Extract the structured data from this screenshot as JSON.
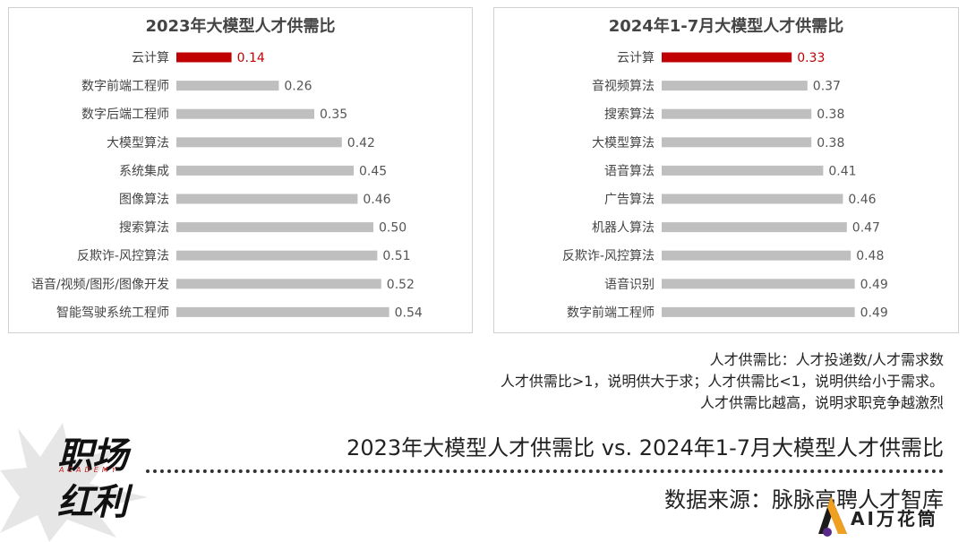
{
  "chart_data": [
    {
      "type": "bar",
      "orientation": "horizontal",
      "title": "2023年大模型人才供需比",
      "categories": [
        "云计算",
        "数字前端工程师",
        "数字后端工程师",
        "大模型算法",
        "系统集成",
        "图像算法",
        "搜索算法",
        "反欺诈-风控算法",
        "语音/视频/图形/图像开发",
        "智能驾驶系统工程师"
      ],
      "values": [
        0.14,
        0.26,
        0.35,
        0.42,
        0.45,
        0.46,
        0.5,
        0.51,
        0.52,
        0.54
      ],
      "value_labels": [
        "0.14",
        "0.26",
        "0.35",
        "0.42",
        "0.45",
        "0.46",
        "0.50",
        "0.51",
        "0.52",
        "0.54"
      ],
      "highlight_index": 0,
      "colors": {
        "highlight": "#c00000",
        "bar": "#bfbfbf"
      },
      "xlim": [
        0,
        0.6
      ],
      "grid": false
    },
    {
      "type": "bar",
      "orientation": "horizontal",
      "title": "2024年1-7月大模型人才供需比",
      "categories": [
        "云计算",
        "音视频算法",
        "搜索算法",
        "大模型算法",
        "语音算法",
        "广告算法",
        "机器人算法",
        "反欺诈-风控算法",
        "语音识别",
        "数字前端工程师"
      ],
      "values": [
        0.33,
        0.37,
        0.38,
        0.38,
        0.41,
        0.46,
        0.47,
        0.48,
        0.49,
        0.49
      ],
      "value_labels": [
        "0.33",
        "0.37",
        "0.38",
        "0.38",
        "0.41",
        "0.46",
        "0.47",
        "0.48",
        "0.49",
        "0.49"
      ],
      "highlight_index": 0,
      "colors": {
        "highlight": "#c00000",
        "bar": "#bfbfbf"
      },
      "xlim": [
        0,
        0.6
      ],
      "grid": false
    }
  ],
  "notes": [
    "人才供需比：人才投递数/人才需求数",
    "人才供需比>1，说明供大于求；人才供需比<1，说明供给小于需求。",
    "人才供需比越高，说明求职竞争越激烈"
  ],
  "subtitle": "2023年大模型人才供需比 vs. 2024年1-7月大模型人才供需比",
  "source": "数据来源：脉脉高聘人才智库",
  "logo": {
    "line1": "职场",
    "line2": "红利",
    "tag": "ACADEMY"
  },
  "badge": {
    "text": "AI万花筒"
  }
}
